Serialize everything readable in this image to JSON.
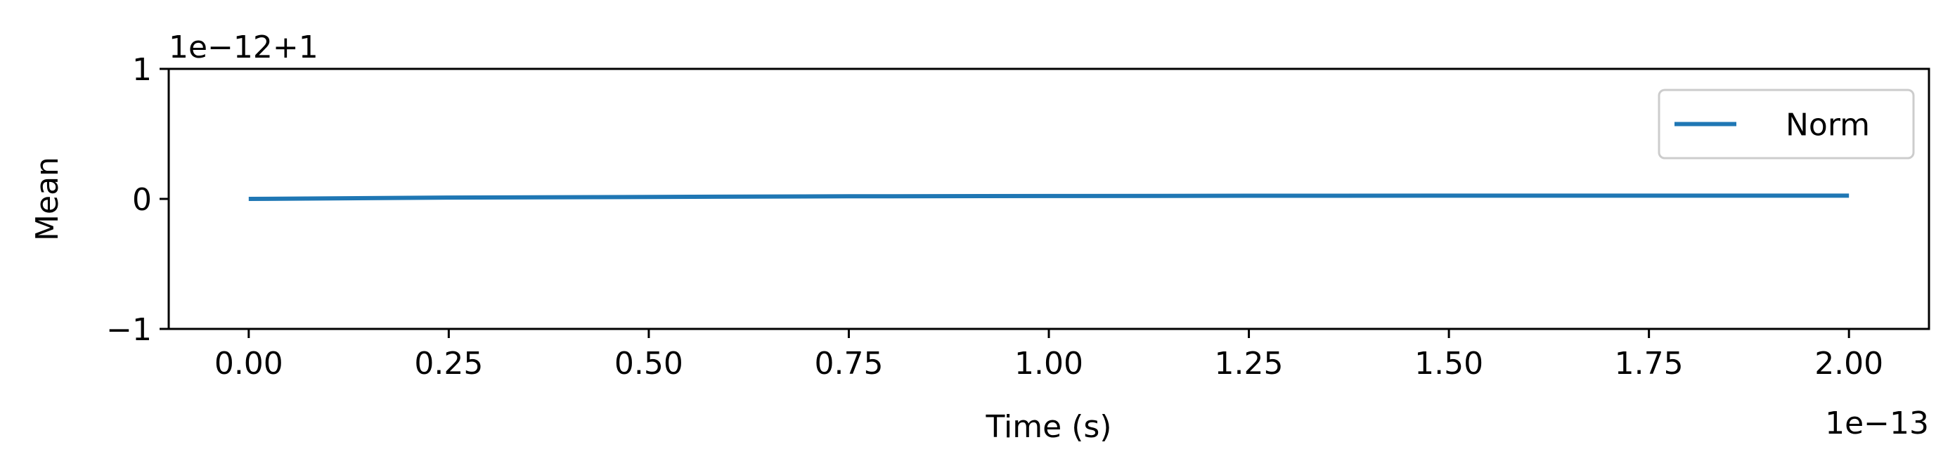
{
  "chart_data": {
    "type": "line",
    "xlabel": "Time (s)",
    "ylabel": "Mean",
    "x_offset_text": "1e−13",
    "y_offset_text": "1e−12+1",
    "x_scale_factor": 1e-13,
    "y_scale_factor": 1e-12,
    "y_offset_value": 1,
    "xlim": [
      -0.1,
      2.1
    ],
    "ylim": [
      -1,
      1
    ],
    "x_ticks": [
      0.0,
      0.25,
      0.5,
      0.75,
      1.0,
      1.25,
      1.5,
      1.75,
      2.0
    ],
    "x_tick_labels": [
      "0.00",
      "0.25",
      "0.50",
      "0.75",
      "1.00",
      "1.25",
      "1.50",
      "1.75",
      "2.00"
    ],
    "y_ticks": [
      -1,
      0,
      1
    ],
    "y_tick_labels": [
      "−1",
      "0",
      "1"
    ],
    "grid": false,
    "legend": {
      "position": "top-right"
    },
    "series": [
      {
        "name": "Norm",
        "color": "#1f77b4",
        "x": [
          0.0,
          0.25,
          0.5,
          0.75,
          1.0,
          1.25,
          1.5,
          1.75,
          2.0
        ],
        "y": [
          0.0,
          0.01,
          0.015,
          0.02,
          0.022,
          0.024,
          0.025,
          0.025,
          0.025
        ]
      }
    ]
  }
}
